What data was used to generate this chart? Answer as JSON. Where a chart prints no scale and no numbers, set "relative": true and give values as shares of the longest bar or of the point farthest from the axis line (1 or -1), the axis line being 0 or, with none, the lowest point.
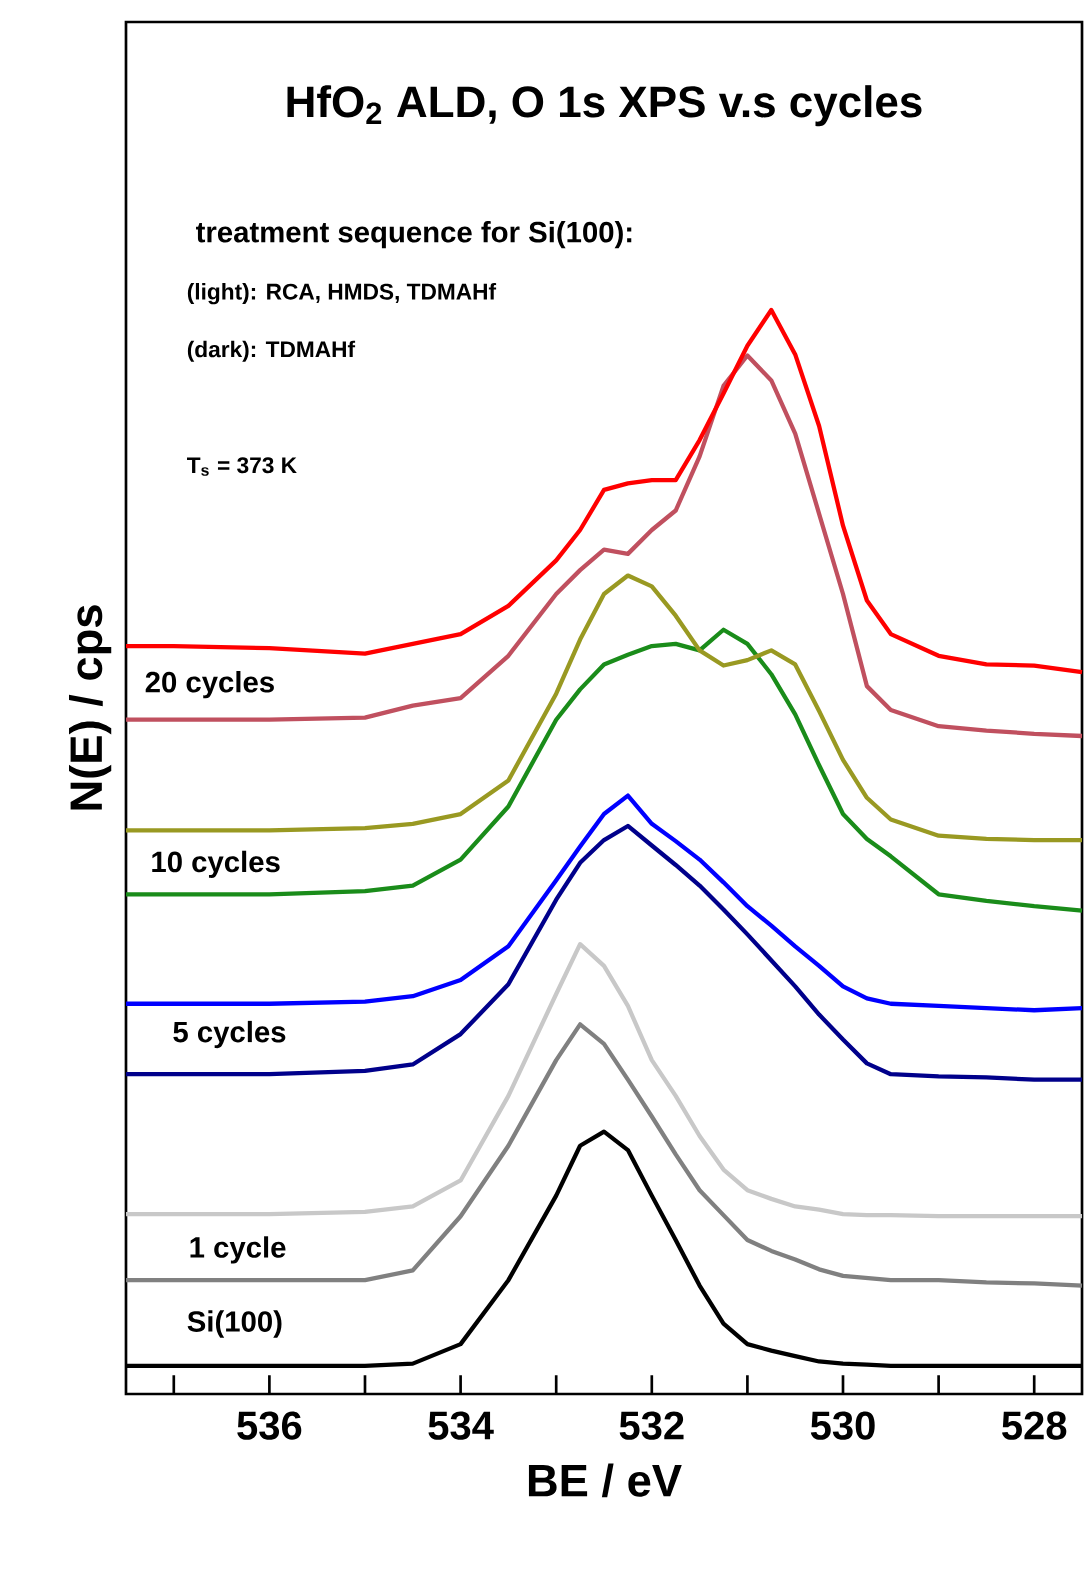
{
  "chart_data": {
    "type": "line",
    "relative": true,
    "title": "HfO$_{2}$ ALD, O 1s XPS v.s cycles",
    "subtitle": "treatment sequence for Si(100):",
    "xlabel": "BE / eV",
    "ylabel": "N(E) / cps",
    "xlim": [
      537.5,
      527.5
    ],
    "xticks": [
      {
        "value": 537,
        "label": null
      },
      536,
      {
        "value": 535,
        "label": null
      },
      534,
      {
        "value": 533,
        "label": null
      },
      532,
      {
        "value": 531,
        "label": null
      },
      530,
      {
        "value": 529,
        "label": null
      },
      528
    ],
    "x": [
      537.5,
      537,
      536,
      535,
      534.5,
      534,
      533.5,
      533,
      532.75,
      532.5,
      532.25,
      532,
      531.75,
      531.5,
      531.25,
      531,
      530.75,
      530.5,
      530.25,
      530,
      529.75,
      529.5,
      529,
      528.5,
      528,
      527.5
    ],
    "series": [
      {
        "color": "#000000",
        "values": [
          0.026,
          0.026,
          0.026,
          0.026,
          0.028,
          0.046,
          0.105,
          0.183,
          0.229,
          0.242,
          0.225,
          0.183,
          0.142,
          0.1,
          0.065,
          0.046,
          0.04,
          0.035,
          0.03,
          0.028,
          0.027,
          0.026,
          0.026,
          0.026,
          0.026,
          0.026
        ]
      },
      {
        "color": "#808080",
        "values": [
          0.105,
          0.105,
          0.105,
          0.105,
          0.114,
          0.164,
          0.229,
          0.308,
          0.341,
          0.323,
          0.29,
          0.256,
          0.221,
          0.188,
          0.165,
          0.142,
          0.132,
          0.124,
          0.115,
          0.109,
          0.107,
          0.105,
          0.105,
          0.103,
          0.102,
          0.1
        ]
      },
      {
        "color": "#c8c8c8",
        "values": [
          0.166,
          0.166,
          0.166,
          0.168,
          0.173,
          0.197,
          0.275,
          0.369,
          0.415,
          0.395,
          0.358,
          0.308,
          0.275,
          0.238,
          0.207,
          0.188,
          0.18,
          0.173,
          0.17,
          0.166,
          0.165,
          0.165,
          0.164,
          0.164,
          0.164,
          0.164
        ]
      },
      {
        "color": "#00008b",
        "values": [
          0.295,
          0.295,
          0.295,
          0.298,
          0.304,
          0.332,
          0.378,
          0.456,
          0.49,
          0.511,
          0.524,
          0.506,
          0.488,
          0.469,
          0.447,
          0.424,
          0.4,
          0.376,
          0.35,
          0.327,
          0.305,
          0.295,
          0.293,
          0.292,
          0.29,
          0.29
        ]
      },
      {
        "color": "#0000ff",
        "values": [
          0.36,
          0.36,
          0.36,
          0.362,
          0.367,
          0.382,
          0.413,
          0.474,
          0.505,
          0.535,
          0.552,
          0.526,
          0.51,
          0.493,
          0.472,
          0.45,
          0.432,
          0.413,
          0.395,
          0.376,
          0.365,
          0.36,
          0.358,
          0.356,
          0.354,
          0.356
        ]
      },
      {
        "color": "#1a8c1a",
        "values": [
          0.461,
          0.461,
          0.461,
          0.464,
          0.469,
          0.493,
          0.542,
          0.622,
          0.65,
          0.673,
          0.682,
          0.69,
          0.692,
          0.686,
          0.705,
          0.692,
          0.664,
          0.627,
          0.58,
          0.535,
          0.512,
          0.496,
          0.461,
          0.455,
          0.45,
          0.446
        ]
      },
      {
        "color": "#999922",
        "values": [
          0.52,
          0.52,
          0.52,
          0.522,
          0.526,
          0.535,
          0.566,
          0.646,
          0.696,
          0.738,
          0.755,
          0.745,
          0.718,
          0.686,
          0.672,
          0.677,
          0.686,
          0.673,
          0.63,
          0.585,
          0.55,
          0.53,
          0.515,
          0.512,
          0.511,
          0.511
        ]
      },
      {
        "color": "#c0505f",
        "values": [
          0.622,
          0.622,
          0.622,
          0.624,
          0.635,
          0.642,
          0.681,
          0.738,
          0.76,
          0.779,
          0.775,
          0.797,
          0.815,
          0.865,
          0.93,
          0.958,
          0.935,
          0.886,
          0.812,
          0.738,
          0.653,
          0.631,
          0.616,
          0.612,
          0.609,
          0.607
        ]
      },
      {
        "color": "#ff0000",
        "values": [
          0.69,
          0.69,
          0.688,
          0.683,
          0.692,
          0.701,
          0.727,
          0.769,
          0.797,
          0.834,
          0.84,
          0.843,
          0.843,
          0.88,
          0.923,
          0.967,
          1.0,
          0.959,
          0.893,
          0.801,
          0.732,
          0.701,
          0.681,
          0.673,
          0.672,
          0.666
        ]
      }
    ],
    "annotations": [
      "(light): RCA, HMDS, TDMAHf",
      "(dark): TDMAHf",
      "T$_{s}$ = 373 K",
      "20 cycles",
      "10 cycles",
      "5 cycles",
      "1 cycle",
      "Si(100)"
    ]
  }
}
